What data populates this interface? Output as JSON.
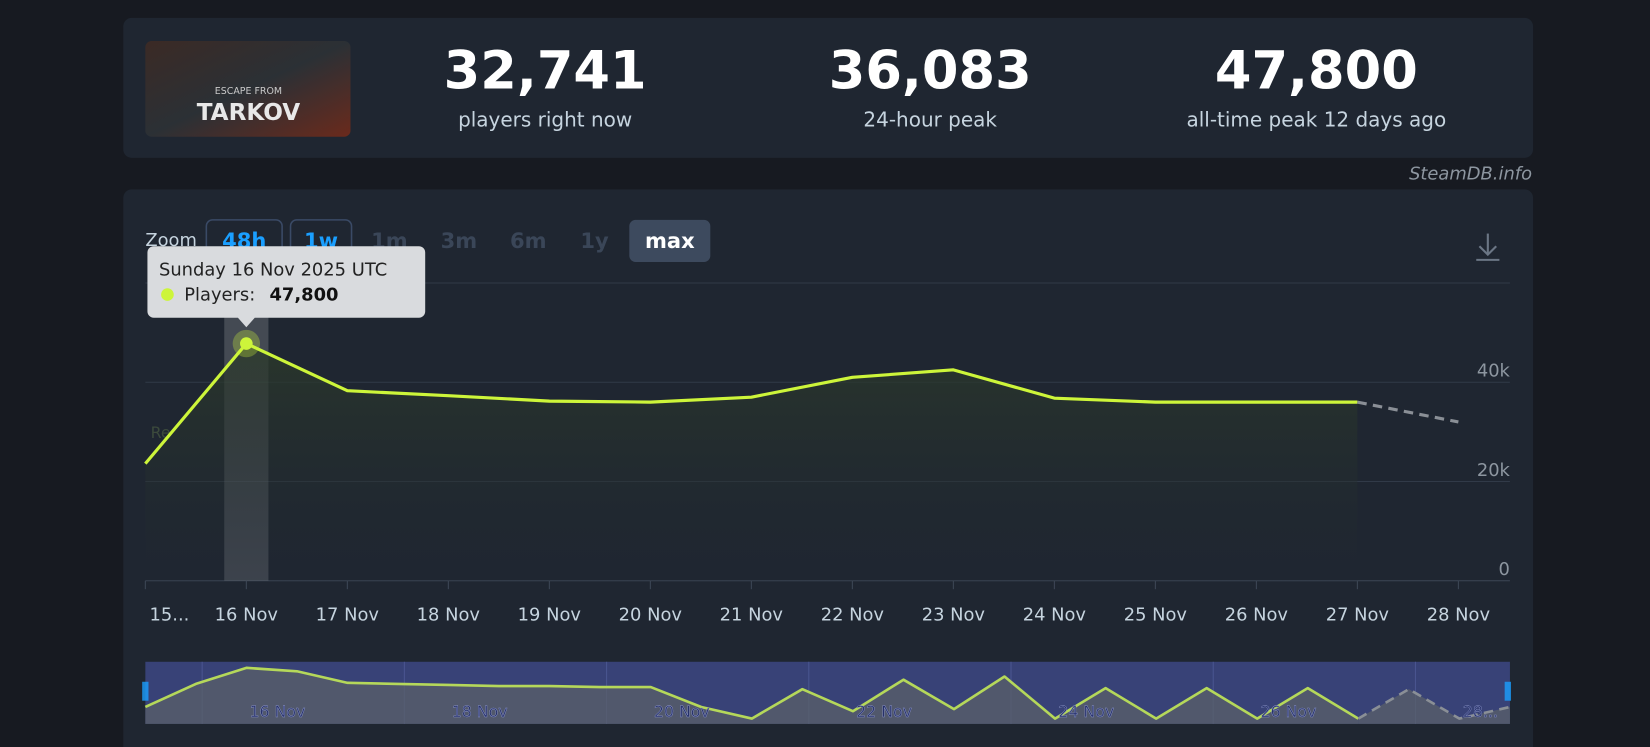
{
  "header": {
    "capsule": {
      "line1": "ESCAPE FROM",
      "line2": "TARKOV"
    },
    "stats": [
      {
        "value": "32,741",
        "label": "players right now"
      },
      {
        "value": "36,083",
        "label": "24-hour peak"
      },
      {
        "value": "47,800",
        "label": "all-time peak 12 days ago"
      }
    ],
    "watermark": "SteamDB.info"
  },
  "zoom": {
    "label": "Zoom",
    "buttons": [
      "48h",
      "1w",
      "1m",
      "3m",
      "6m",
      "1y",
      "max"
    ],
    "reset": "Re"
  },
  "tooltip": {
    "title": "Sunday 16 Nov 2025 UTC",
    "label": "Players:",
    "value": "47,800"
  },
  "chart_data": {
    "type": "line",
    "categories": [
      "15...",
      "16 Nov",
      "17 Nov",
      "18 Nov",
      "19 Nov",
      "20 Nov",
      "21 Nov",
      "22 Nov",
      "23 Nov",
      "24 Nov",
      "25 Nov",
      "26 Nov",
      "27 Nov",
      "28 Nov"
    ],
    "series": [
      {
        "name": "Players",
        "color": "#cdf53a",
        "values": [
          23600,
          47800,
          38300,
          37300,
          36200,
          36000,
          37000,
          41000,
          42500,
          36800,
          36000,
          36000,
          36000,
          null
        ]
      },
      {
        "color": "#8a8f96",
        "dashed": true,
        "values": [
          null,
          null,
          null,
          null,
          null,
          null,
          null,
          null,
          null,
          null,
          null,
          null,
          36000,
          32000
        ]
      }
    ],
    "ylim": [
      0,
      60000
    ],
    "yticks": [
      0,
      {
        "value": 20000,
        "label": "20k"
      },
      {
        "value": 40000,
        "label": "40k"
      }
    ],
    "grid": true
  },
  "navigator": {
    "labels": [
      "16 Nov",
      "18 Nov",
      "20 Nov",
      "22 Nov",
      "24 Nov",
      "26 Nov",
      "28..."
    ],
    "ylim": [
      0,
      53000
    ],
    "series": [
      {
        "color": "#b5d85a",
        "values": [
          14400,
          34100,
          47800,
          44900,
          35000,
          34100,
          33200,
          32300,
          32300,
          31400,
          31400,
          14400,
          4500,
          29600,
          10800,
          37700,
          12600,
          40400,
          4500,
          30500,
          4500,
          30500,
          4500,
          30500,
          4500,
          null,
          null,
          null
        ]
      },
      {
        "color": "#8a8f96",
        "dashed": true,
        "values": [
          null,
          null,
          null,
          null,
          null,
          null,
          null,
          null,
          null,
          null,
          null,
          null,
          null,
          null,
          null,
          null,
          null,
          null,
          null,
          null,
          null,
          null,
          null,
          null,
          4500,
          29600,
          4500,
          14400
        ]
      }
    ]
  }
}
